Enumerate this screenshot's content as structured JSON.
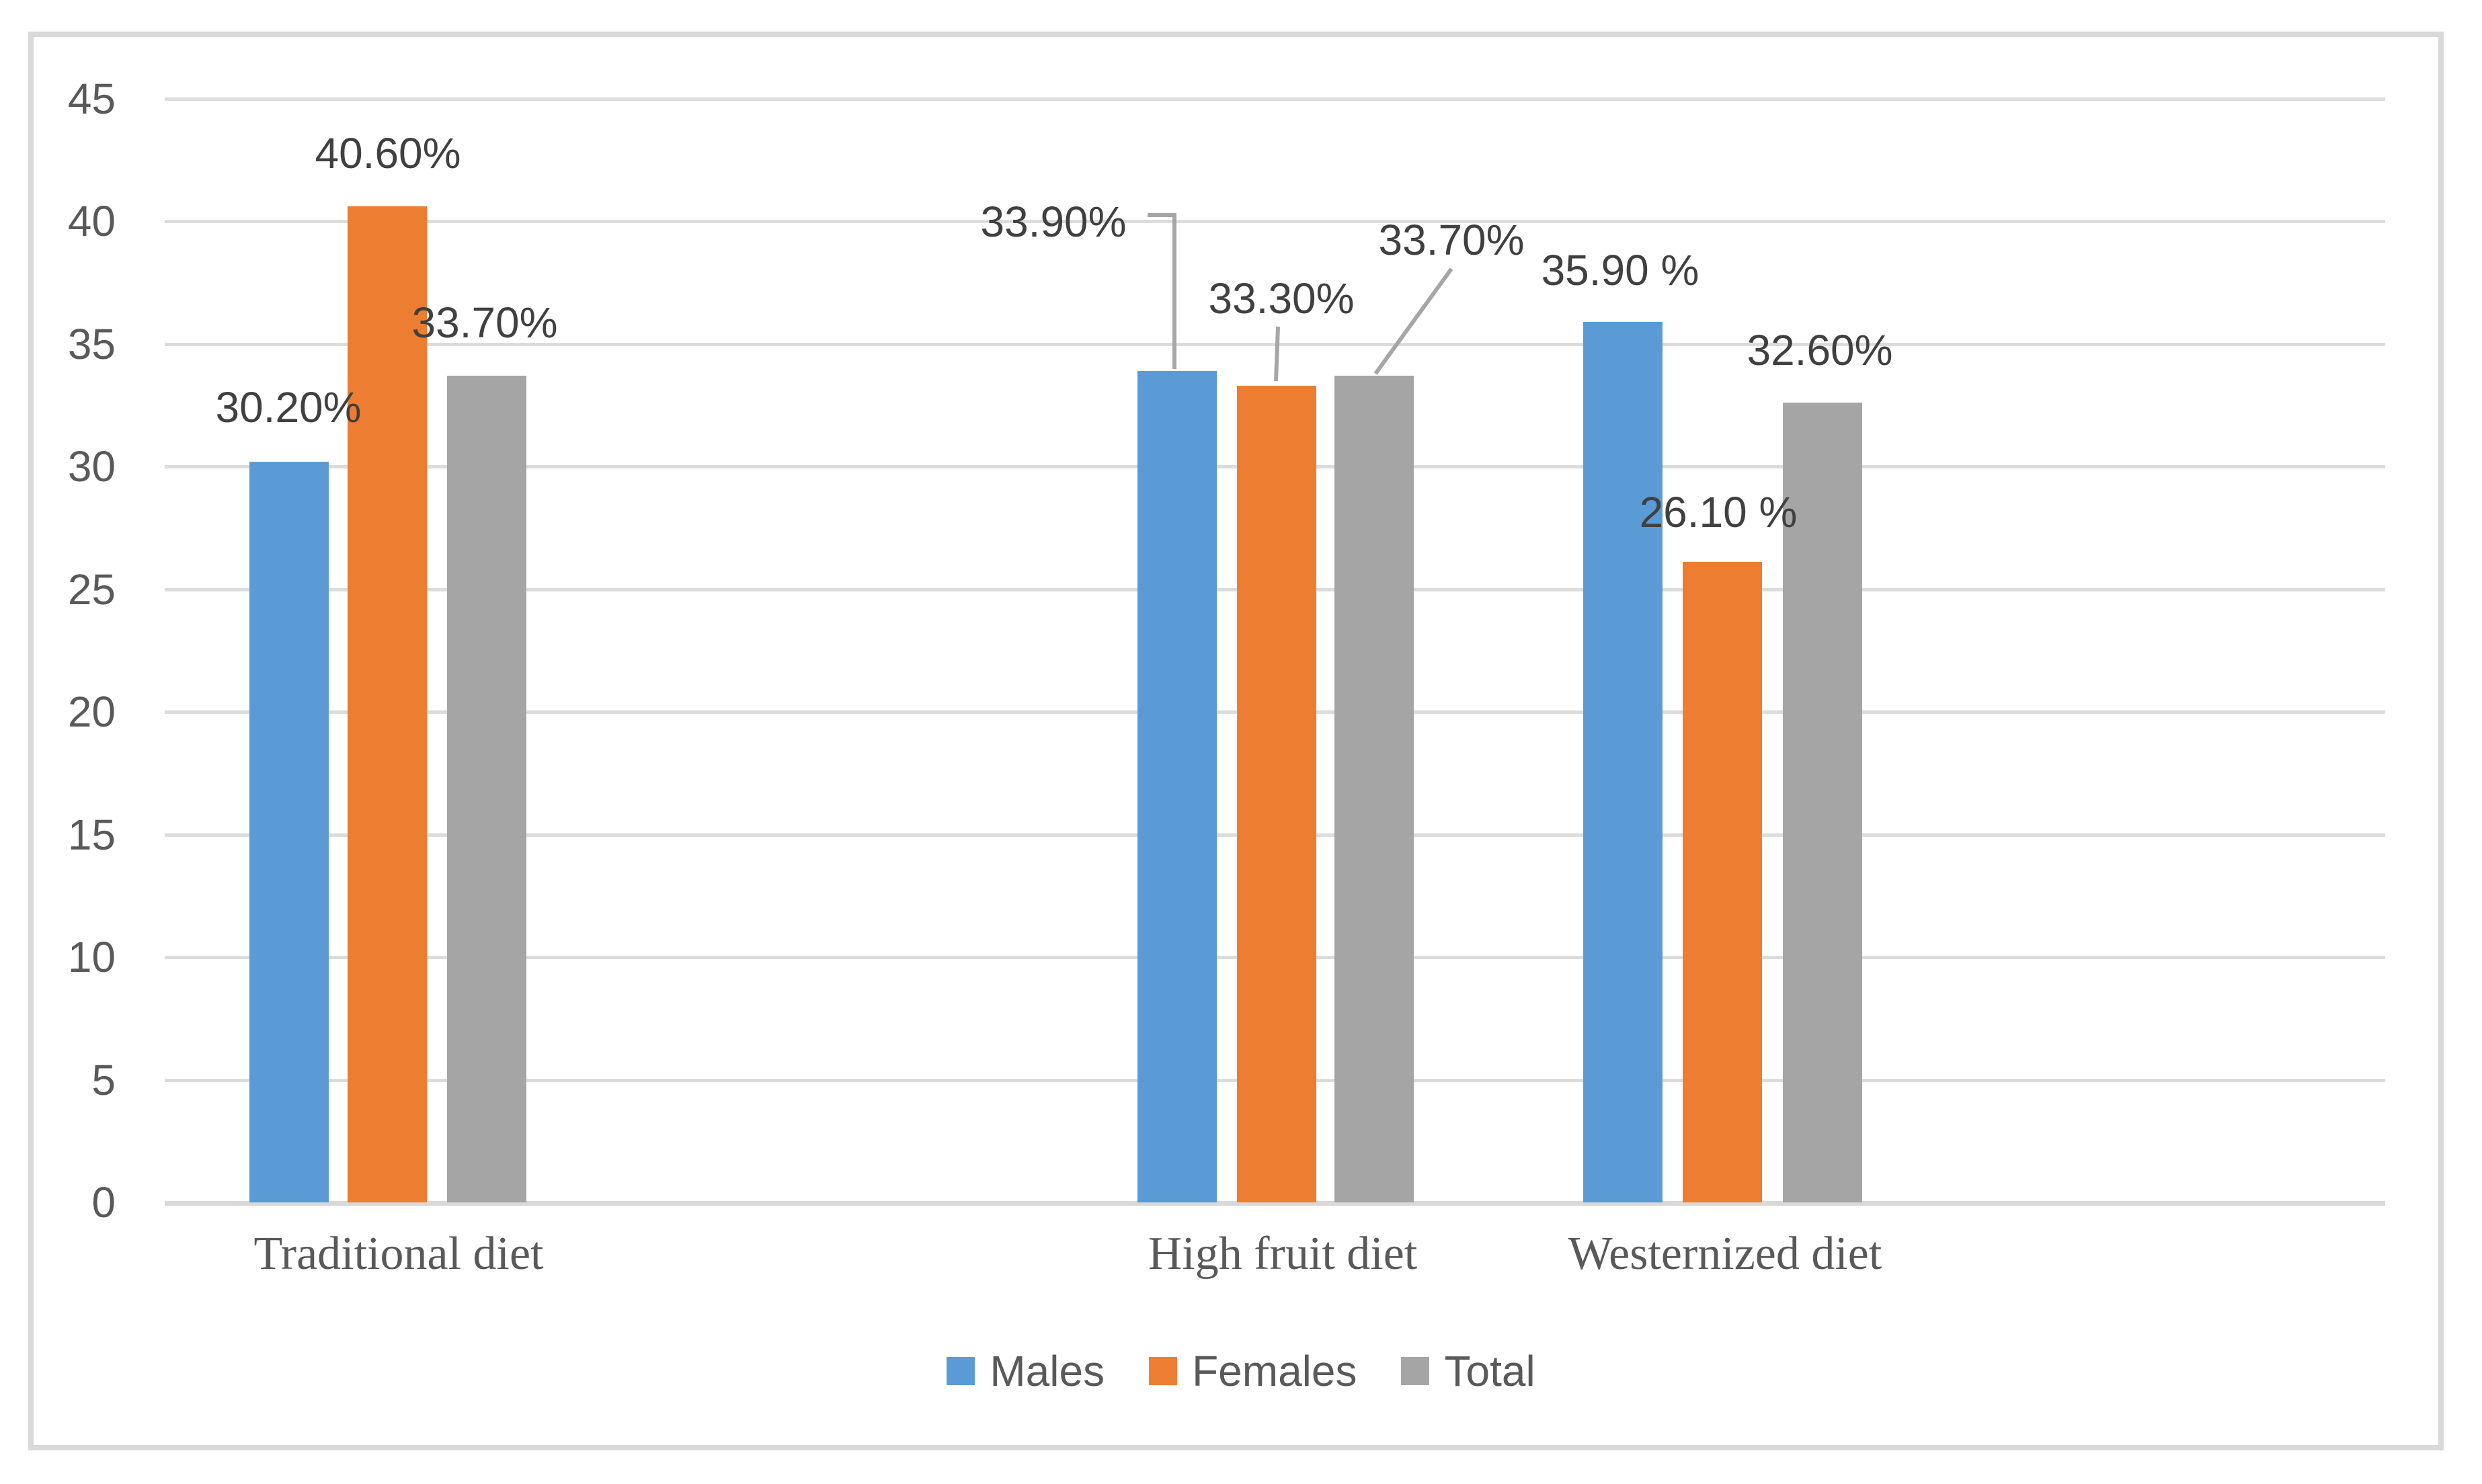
{
  "chart_data": {
    "type": "bar",
    "title": "",
    "categories": [
      "Traditional diet",
      "High fruit diet",
      "Westernized diet"
    ],
    "series": [
      {
        "name": "Males",
        "color": "#5B9BD5",
        "values": [
          30.2,
          33.9,
          35.9
        ],
        "data_labels": [
          "30.20%",
          "33.90%",
          "35.90 %"
        ]
      },
      {
        "name": "Females",
        "color": "#ED7D31",
        "values": [
          40.6,
          33.3,
          26.1
        ],
        "data_labels": [
          "40.60%",
          "33.30%",
          "26.10 %"
        ]
      },
      {
        "name": "Total",
        "color": "#A5A5A5",
        "values": [
          33.7,
          33.7,
          32.6
        ],
        "data_labels": [
          "33.70%",
          "33.70%",
          "32.60%"
        ]
      }
    ],
    "y_axis": {
      "min": 0,
      "max": 45,
      "step": 5,
      "tick_labels": [
        "0",
        "5",
        "10",
        "15",
        "20",
        "25",
        "30",
        "35",
        "40",
        "45"
      ]
    },
    "legend": {
      "position": "bottom",
      "entries": [
        "Males",
        "Females",
        "Total"
      ]
    },
    "grid": true,
    "annotation_callouts": [
      "33.90%",
      "33.30%",
      "33.70%"
    ],
    "colors": {
      "gridline": "#DCDCDC",
      "axis_baseline": "#D9D9D9",
      "chart_border": "#D9D9D9",
      "tick_text": "#595959",
      "data_label_text": "#404040",
      "category_text": "#595959",
      "legend_text": "#595959",
      "leader_line": "#A6A6A6",
      "background": "#FFFFFF"
    }
  }
}
